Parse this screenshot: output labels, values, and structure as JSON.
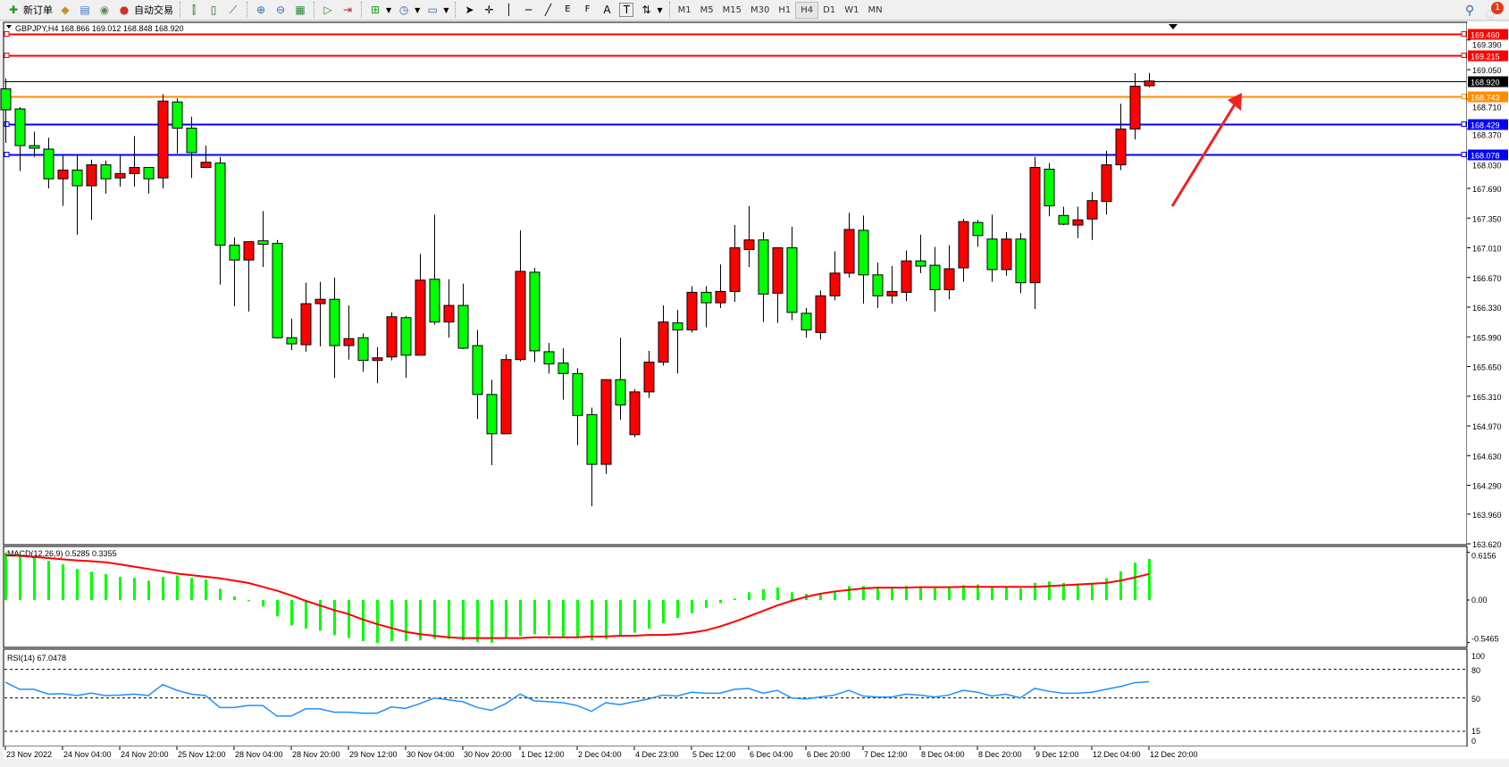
{
  "toolbar": {
    "new_order": "新订单",
    "auto_trading": "自动交易",
    "periods": [
      "M1",
      "M5",
      "M15",
      "M30",
      "H1",
      "H4",
      "D1",
      "W1",
      "MN"
    ],
    "active_period": "H4",
    "notification_count": "1",
    "fib_e": "E",
    "fib_f": "F",
    "text_tool": "A",
    "label_tool": "T"
  },
  "chart": {
    "header": "GBPJPY,H4  168.866 169.012 168.848 168.920",
    "colors": {
      "bull": "#ff0000",
      "bear": "#00ff00",
      "outline": "#000000",
      "background": "#ffffff"
    },
    "price_ticks": [
      "169.390",
      "169.050",
      "168.710",
      "168.370",
      "168.030",
      "167.690",
      "167.350",
      "167.010",
      "166.670",
      "166.330",
      "165.990",
      "165.650",
      "165.310",
      "164.970",
      "164.630",
      "164.290",
      "163.960",
      "163.620"
    ],
    "levels": [
      {
        "price": 169.46,
        "label": "169.460",
        "color": "#ff0000"
      },
      {
        "price": 169.215,
        "label": "169.215",
        "color": "#ff0000"
      },
      {
        "price": 168.92,
        "label": "168.920",
        "color": "#000000"
      },
      {
        "price": 168.743,
        "label": "168.743",
        "color": "#ff8c00"
      },
      {
        "price": 168.429,
        "label": "168.429",
        "color": "#0000ff"
      },
      {
        "price": 168.078,
        "label": "168.078",
        "color": "#0000ff"
      }
    ],
    "annotation": {
      "type": "arrow",
      "color": "#ee2222",
      "direction": "up-right"
    },
    "time_labels": [
      "23 Nov 2022",
      "24 Nov 04:00",
      "24 Nov 20:00",
      "25 Nov 12:00",
      "28 Nov 04:00",
      "28 Nov 20:00",
      "29 Nov 12:00",
      "30 Nov 04:00",
      "30 Nov 20:00",
      "1 Dec 12:00",
      "2 Dec 04:00",
      "4 Dec 23:00",
      "5 Dec 12:00",
      "6 Dec 04:00",
      "6 Dec 20:00",
      "7 Dec 12:00",
      "8 Dec 04:00",
      "8 Dec 20:00",
      "9 Dec 12:00",
      "12 Dec 04:00",
      "12 Dec 20:00"
    ]
  },
  "macd": {
    "label": "MACD(12,26,9) 0.5285 0.3355",
    "scale": [
      "0.6156",
      "0.00",
      "-0.5465"
    ],
    "hist_color": "#00ff00",
    "signal_color": "#ff0000"
  },
  "rsi": {
    "label": "RSI(14) 67.0478",
    "levels": [
      "100",
      "80",
      "50",
      "15",
      "0"
    ],
    "color": "#1e90ff"
  },
  "chart_data": {
    "type": "candlestick",
    "symbol": "GBPJPY",
    "timeframe": "H4",
    "ohlc": [
      [
        168.83,
        168.95,
        168.21,
        168.59
      ],
      [
        168.6,
        168.62,
        167.89,
        168.18
      ],
      [
        168.18,
        168.34,
        168.05,
        168.15
      ],
      [
        168.14,
        168.27,
        167.69,
        167.8
      ],
      [
        167.8,
        168.07,
        167.49,
        167.9
      ],
      [
        167.9,
        168.07,
        167.16,
        167.72
      ],
      [
        167.72,
        168.02,
        167.33,
        167.96
      ],
      [
        167.96,
        168.01,
        167.63,
        167.8
      ],
      [
        167.81,
        168.07,
        167.71,
        167.86
      ],
      [
        167.86,
        168.29,
        167.71,
        167.93
      ],
      [
        167.93,
        167.93,
        167.63,
        167.8
      ],
      [
        167.81,
        168.77,
        167.69,
        168.69
      ],
      [
        168.68,
        168.72,
        168.09,
        168.38
      ],
      [
        168.38,
        168.51,
        167.81,
        168.1
      ],
      [
        167.93,
        168.18,
        167.93,
        167.99
      ],
      [
        167.98,
        168.05,
        166.59,
        167.04
      ],
      [
        167.04,
        167.13,
        166.34,
        166.87
      ],
      [
        166.87,
        167.08,
        166.28,
        167.08
      ],
      [
        167.09,
        167.43,
        166.79,
        167.05
      ],
      [
        167.06,
        167.1,
        165.97,
        165.98
      ],
      [
        165.98,
        166.2,
        165.84,
        165.91
      ],
      [
        165.9,
        166.61,
        165.82,
        166.37
      ],
      [
        166.37,
        166.62,
        165.88,
        166.42
      ],
      [
        166.42,
        166.67,
        165.52,
        165.89
      ],
      [
        165.89,
        166.35,
        165.73,
        165.97
      ],
      [
        165.98,
        166.03,
        165.59,
        165.72
      ],
      [
        165.72,
        165.87,
        165.46,
        165.75
      ],
      [
        165.76,
        166.27,
        165.72,
        166.22
      ],
      [
        166.21,
        166.23,
        165.52,
        165.78
      ],
      [
        165.78,
        166.94,
        165.78,
        166.64
      ],
      [
        166.65,
        167.39,
        166.13,
        166.16
      ],
      [
        166.16,
        166.65,
        165.98,
        166.35
      ],
      [
        166.35,
        166.6,
        165.85,
        165.86
      ],
      [
        165.89,
        166.07,
        165.05,
        165.33
      ],
      [
        165.33,
        165.5,
        164.52,
        164.88
      ],
      [
        164.88,
        165.79,
        164.88,
        165.73
      ],
      [
        165.73,
        167.21,
        165.71,
        166.74
      ],
      [
        166.73,
        166.78,
        165.7,
        165.83
      ],
      [
        165.82,
        165.92,
        165.57,
        165.68
      ],
      [
        165.69,
        165.86,
        165.27,
        165.57
      ],
      [
        165.57,
        165.63,
        164.75,
        165.09
      ],
      [
        165.1,
        165.18,
        164.05,
        164.53
      ],
      [
        164.53,
        165.5,
        164.42,
        165.5
      ],
      [
        165.5,
        165.98,
        165.04,
        165.21
      ],
      [
        164.87,
        165.39,
        164.84,
        165.36
      ],
      [
        165.36,
        165.83,
        165.29,
        165.7
      ],
      [
        165.7,
        166.35,
        165.66,
        166.16
      ],
      [
        166.15,
        166.3,
        165.57,
        166.07
      ],
      [
        166.07,
        166.57,
        166.04,
        166.5
      ],
      [
        166.5,
        166.57,
        166.1,
        166.38
      ],
      [
        166.38,
        166.82,
        166.32,
        166.51
      ],
      [
        166.51,
        167.27,
        166.39,
        167.01
      ],
      [
        166.99,
        167.49,
        166.79,
        167.1
      ],
      [
        167.1,
        167.19,
        166.16,
        166.48
      ],
      [
        166.49,
        167.01,
        166.15,
        167.01
      ],
      [
        167.01,
        167.25,
        166.18,
        166.27
      ],
      [
        166.26,
        166.32,
        165.98,
        166.07
      ],
      [
        166.04,
        166.52,
        165.96,
        166.46
      ],
      [
        166.46,
        166.97,
        166.41,
        166.72
      ],
      [
        166.72,
        167.41,
        166.67,
        167.22
      ],
      [
        167.21,
        167.38,
        166.37,
        166.7
      ],
      [
        166.7,
        166.84,
        166.32,
        166.46
      ],
      [
        166.46,
        166.8,
        166.37,
        166.51
      ],
      [
        166.5,
        166.98,
        166.4,
        166.86
      ],
      [
        166.86,
        167.16,
        166.72,
        166.8
      ],
      [
        166.81,
        167.02,
        166.28,
        166.53
      ],
      [
        166.53,
        167.04,
        166.42,
        166.77
      ],
      [
        166.78,
        167.34,
        166.62,
        167.31
      ],
      [
        167.3,
        167.33,
        167.02,
        167.15
      ],
      [
        167.11,
        167.39,
        166.62,
        166.76
      ],
      [
        166.76,
        167.19,
        166.69,
        167.11
      ],
      [
        167.11,
        167.18,
        166.49,
        166.61
      ],
      [
        166.61,
        168.05,
        166.31,
        167.93
      ],
      [
        167.91,
        167.98,
        167.37,
        167.49
      ],
      [
        167.38,
        167.48,
        167.27,
        167.28
      ],
      [
        167.27,
        167.48,
        167.12,
        167.33
      ],
      [
        167.34,
        167.65,
        167.1,
        167.55
      ],
      [
        167.54,
        168.12,
        167.39,
        167.96
      ],
      [
        167.96,
        168.66,
        167.9,
        168.37
      ],
      [
        168.37,
        169.01,
        168.25,
        168.86
      ],
      [
        168.866,
        169.012,
        168.848,
        168.92
      ]
    ],
    "ylim": [
      163.58,
      169.58
    ],
    "macd_hist": [
      0.61,
      0.575,
      0.563,
      0.506,
      0.46,
      0.4,
      0.364,
      0.333,
      0.299,
      0.283,
      0.249,
      0.299,
      0.314,
      0.283,
      0.264,
      0.146,
      0.046,
      -0.015,
      -0.084,
      -0.21,
      -0.326,
      -0.368,
      -0.394,
      -0.452,
      -0.486,
      -0.529,
      -0.551,
      -0.529,
      -0.53,
      -0.52,
      -0.5,
      -0.5,
      -0.52,
      -0.54,
      -0.55,
      -0.5,
      -0.46,
      -0.44,
      -0.45,
      -0.47,
      -0.47,
      -0.52,
      -0.5,
      -0.46,
      -0.42,
      -0.37,
      -0.3,
      -0.23,
      -0.17,
      -0.1,
      -0.04,
      0.02,
      0.1,
      0.14,
      0.16,
      0.1,
      0.08,
      0.07,
      0.12,
      0.18,
      0.18,
      0.16,
      0.17,
      0.18,
      0.17,
      0.15,
      0.16,
      0.19,
      0.2,
      0.17,
      0.17,
      0.15,
      0.22,
      0.24,
      0.22,
      0.21,
      0.22,
      0.28,
      0.37,
      0.48,
      0.5285
    ],
    "macd_signal": [
      0.575,
      0.57,
      0.555,
      0.54,
      0.525,
      0.51,
      0.5,
      0.486,
      0.46,
      0.43,
      0.4,
      0.37,
      0.34,
      0.32,
      0.3,
      0.28,
      0.25,
      0.22,
      0.17,
      0.12,
      0.06,
      -0.01,
      -0.07,
      -0.13,
      -0.18,
      -0.25,
      -0.31,
      -0.36,
      -0.41,
      -0.44,
      -0.46,
      -0.48,
      -0.49,
      -0.49,
      -0.49,
      -0.49,
      -0.49,
      -0.48,
      -0.48,
      -0.48,
      -0.48,
      -0.47,
      -0.47,
      -0.46,
      -0.46,
      -0.45,
      -0.45,
      -0.44,
      -0.42,
      -0.39,
      -0.34,
      -0.28,
      -0.21,
      -0.14,
      -0.07,
      -0.01,
      0.04,
      0.08,
      0.11,
      0.13,
      0.15,
      0.16,
      0.16,
      0.16,
      0.165,
      0.165,
      0.165,
      0.17,
      0.17,
      0.17,
      0.17,
      0.17,
      0.17,
      0.18,
      0.19,
      0.2,
      0.21,
      0.22,
      0.25,
      0.29,
      0.3355
    ],
    "macd_ylim": [
      -0.5465,
      0.6156
    ],
    "rsi": [
      66.5,
      59,
      59,
      54,
      54.5,
      52.5,
      55,
      52.5,
      53,
      54,
      52.5,
      64,
      58,
      54,
      52.5,
      40,
      40,
      42,
      42,
      31,
      31,
      38.5,
      38.5,
      35,
      35,
      34,
      34,
      40.5,
      39,
      44,
      50,
      48,
      46,
      40,
      37,
      44,
      54,
      47,
      46,
      45,
      42,
      36,
      45,
      43,
      46,
      49,
      53,
      52,
      56,
      55,
      55,
      59,
      60,
      55,
      58,
      50,
      49,
      51,
      53,
      58,
      52,
      51,
      51,
      54,
      53,
      51,
      53,
      58,
      56,
      52,
      54,
      50,
      60,
      57,
      55,
      55,
      56,
      59,
      62,
      66,
      67.0478
    ],
    "rsi_levels": [
      80,
      50,
      15
    ],
    "rsi_ylim": [
      0,
      100
    ]
  }
}
